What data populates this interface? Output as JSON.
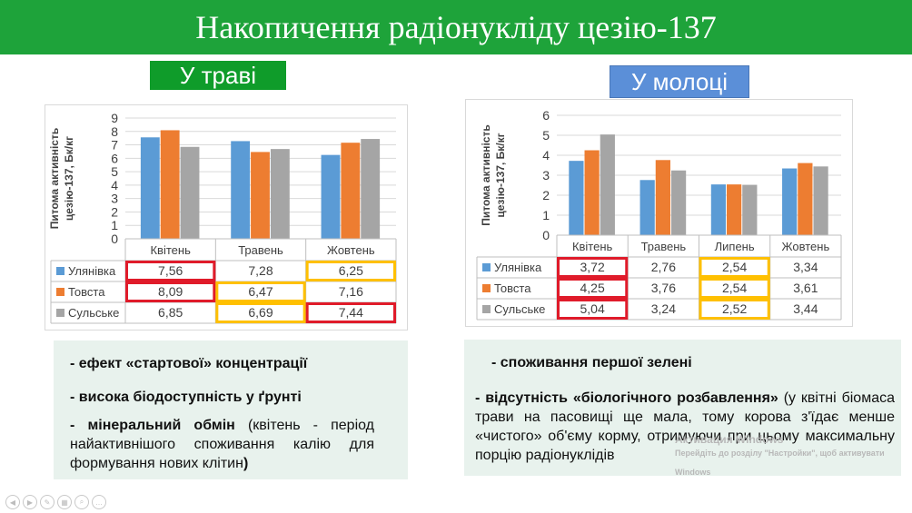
{
  "title": "Накопичення радіонукліду цезію-137",
  "grass_label": "У траві",
  "milk_label": "У молоці",
  "colors": {
    "ulyanivka": "#5b9bd5",
    "tovsta": "#ed7d31",
    "sulske": "#a5a5a5",
    "red_box": "#e01b2a",
    "yellow_box": "#ffc000"
  },
  "chart_data": [
    {
      "type": "bar",
      "ylabel": "Питома активність цезію-137, Бк/кг",
      "categories": [
        "Квітень",
        "Травень",
        "Жовтень"
      ],
      "yticks": [
        "0",
        "1",
        "2",
        "3",
        "4",
        "5",
        "6",
        "7",
        "8",
        "9"
      ],
      "ylim": [
        0,
        9
      ],
      "grid": true,
      "series": [
        {
          "name": "Улянівка",
          "values": [
            7.56,
            7.28,
            6.25
          ],
          "labels": [
            "7,56",
            "7,28",
            "6,25"
          ],
          "highlights": [
            "red",
            "",
            "yellow"
          ]
        },
        {
          "name": "Товста",
          "values": [
            8.09,
            6.47,
            7.16
          ],
          "labels": [
            "8,09",
            "6,47",
            "7,16"
          ],
          "highlights": [
            "red",
            "yellow",
            ""
          ]
        },
        {
          "name": "Сульське",
          "values": [
            6.85,
            6.69,
            7.44
          ],
          "labels": [
            "6,85",
            "6,69",
            "7,44"
          ],
          "highlights": [
            "",
            "yellow",
            "red"
          ]
        }
      ]
    },
    {
      "type": "bar",
      "ylabel": "Питома активність цезію-137, Бк/кг",
      "categories": [
        "Квітень",
        "Травень",
        "Липень",
        "Жовтень"
      ],
      "yticks": [
        "0",
        "1",
        "2",
        "3",
        "4",
        "5",
        "6"
      ],
      "ylim": [
        0,
        6
      ],
      "grid": true,
      "series": [
        {
          "name": "Улянівка",
          "values": [
            3.72,
            2.76,
            2.54,
            3.34
          ],
          "labels": [
            "3,72",
            "2,76",
            "2,54",
            "3,34"
          ],
          "highlights": [
            "red",
            "",
            "yellow",
            ""
          ]
        },
        {
          "name": "Товста",
          "values": [
            4.25,
            3.76,
            2.54,
            3.61
          ],
          "labels": [
            "4,25",
            "3,76",
            "2,54",
            "3,61"
          ],
          "highlights": [
            "red",
            "",
            "yellow",
            ""
          ]
        },
        {
          "name": "Сульське",
          "values": [
            5.04,
            3.24,
            2.52,
            3.44
          ],
          "labels": [
            "5,04",
            "3,24",
            "2,52",
            "3,44"
          ],
          "highlights": [
            "red",
            "",
            "yellow",
            ""
          ]
        }
      ]
    }
  ],
  "notes_left": [
    "- ефект «стартової» концентрації",
    "- висока біодоступність у ґрунті",
    "- мінеральний обмін",
    "(квітень - період найактивнішого споживання калію для формування нових клітин",
    ")"
  ],
  "notes_right": [
    "- споживання першої зелені",
    "- відсутність «біологічного розбавлення»",
    " (у квітні біомаса трави на пасовищі ще мала, тому корова з'їдає менше «чистого» об'єму корму, отримуючи при цьому максимальну порцію радіонуклідів"
  ],
  "watermark": [
    "Активация Windows",
    "Перейдіть до розділу \"Настройки\", щоб активувати Windows"
  ]
}
